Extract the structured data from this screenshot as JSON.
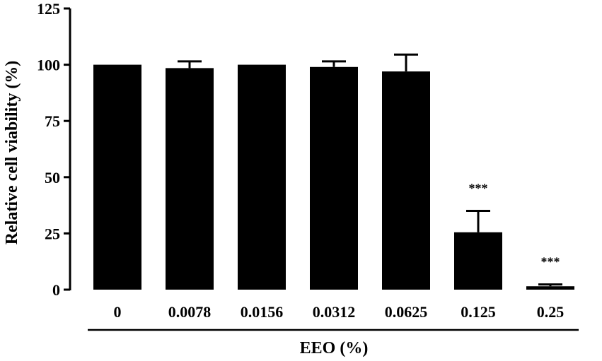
{
  "chart_data": {
    "type": "bar",
    "title": "",
    "xlabel": "EEO (%)",
    "ylabel": "Relative cell viability (%)",
    "ylim": [
      0,
      125
    ],
    "yticks": [
      0,
      25,
      50,
      75,
      100,
      125
    ],
    "ytick_labels": [
      "0",
      "25",
      "50",
      "75",
      "100",
      "125"
    ],
    "categories": [
      "0",
      "0.0078",
      "0.0156",
      "0.0312",
      "0.0625",
      "0.125",
      "0.25"
    ],
    "values": [
      100,
      98.5,
      100,
      99,
      97,
      25.5,
      1.5
    ],
    "errors": [
      0,
      3,
      0,
      2.5,
      7.5,
      9.5,
      0.8
    ],
    "annotations": [
      "",
      "",
      "",
      "",
      "",
      "***",
      "***"
    ],
    "colors": {
      "bar": "#000000",
      "axis": "#000000"
    },
    "grid": false,
    "legend": "none"
  }
}
